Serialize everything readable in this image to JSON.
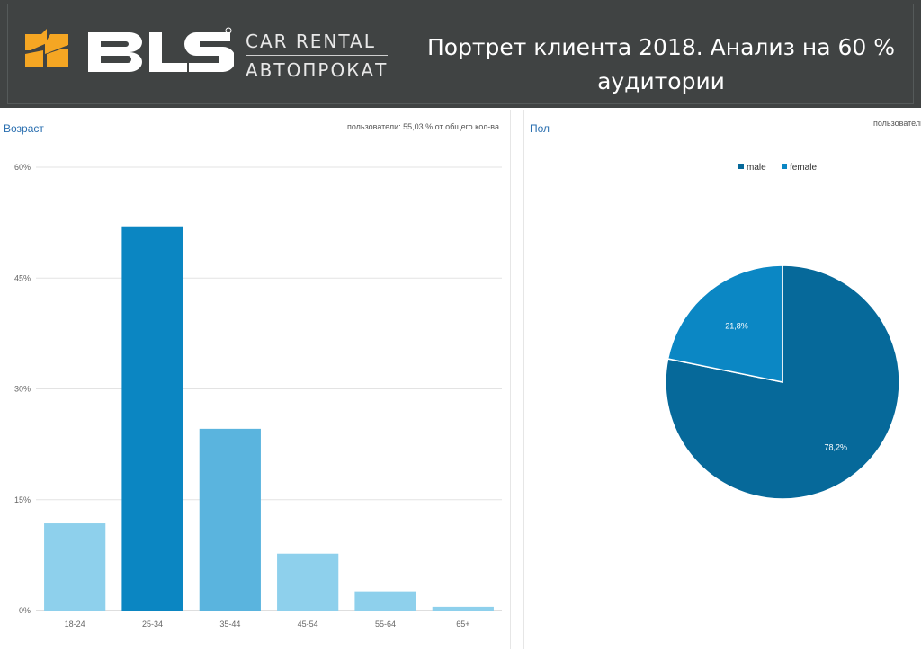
{
  "header": {
    "logo_text": "BLS",
    "logo_sub1": "CAR RENTAL",
    "logo_sub2": "АВТОПРОКАТ",
    "title_line1": "Портрет клиента 2018. Анализ на 60 %",
    "title_line2": "аудитории"
  },
  "left_panel": {
    "title": "Возраст",
    "note": "пользователи: 55,03 % от общего кол-ва"
  },
  "right_panel": {
    "title": "Пол",
    "note": "пользователи"
  },
  "colors": {
    "header_bg": "#404343",
    "accent": "#f5a623",
    "bar_dark": "#0b86c2",
    "bar_mid": "#5ab4de",
    "bar_light": "#8ed0ec",
    "pie_male": "#06699a",
    "pie_female": "#0b87c4"
  },
  "chart_data": [
    {
      "type": "bar",
      "title": "Возраст",
      "categories": [
        "18-24",
        "25-34",
        "35-44",
        "45-54",
        "55-64",
        "65+"
      ],
      "values": [
        11.8,
        52.0,
        24.6,
        7.7,
        2.6,
        0.5
      ],
      "bar_colors": [
        "#8ed0ec",
        "#0b86c2",
        "#5ab4de",
        "#8ed0ec",
        "#8ed0ec",
        "#8ed0ec"
      ],
      "ylim": [
        0,
        60
      ],
      "yticks": [
        0,
        15,
        30,
        45,
        60
      ],
      "ytick_labels": [
        "0%",
        "15%",
        "30%",
        "45%",
        "60%"
      ],
      "grid": true
    },
    {
      "type": "pie",
      "title": "Пол",
      "slices": [
        {
          "name": "male",
          "value": 78.2,
          "label": "78,2%",
          "color": "#06699a"
        },
        {
          "name": "female",
          "value": 21.8,
          "label": "21,8%",
          "color": "#0b87c4"
        }
      ],
      "legend_position": "top"
    }
  ]
}
